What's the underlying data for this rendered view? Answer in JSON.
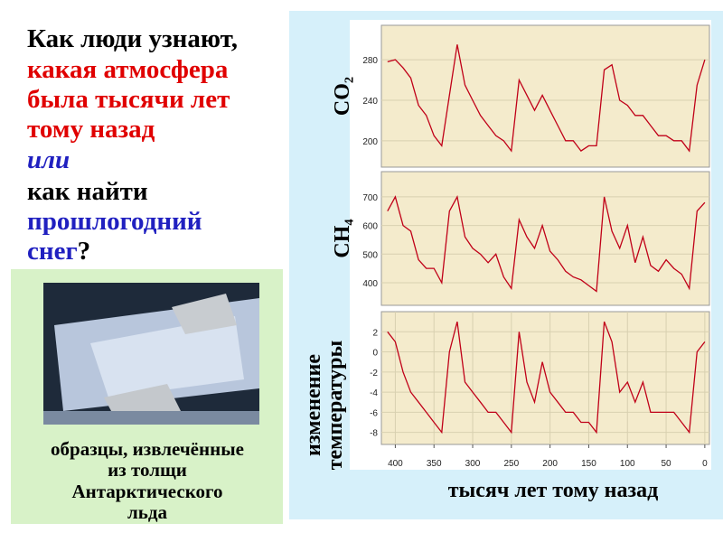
{
  "question": [
    "Как люди узнают,",
    "какая атмосфера",
    "была тысячи лет",
    "тому назад",
    "или",
    "как найти",
    "прошлогодний",
    "снег",
    "?"
  ],
  "caption": [
    "образцы, извлечённые",
    "из толщи",
    "Антарктического",
    "льда"
  ],
  "chart_data": [
    {
      "type": "line",
      "y_label": "CO₂",
      "color": "#c00018",
      "grid": true,
      "x": [
        410,
        400,
        390,
        380,
        370,
        360,
        350,
        340,
        330,
        320,
        310,
        300,
        290,
        280,
        270,
        260,
        250,
        240,
        230,
        220,
        210,
        200,
        190,
        180,
        170,
        160,
        150,
        140,
        130,
        120,
        110,
        100,
        90,
        80,
        70,
        60,
        50,
        40,
        30,
        20,
        10,
        0
      ],
      "values": [
        278,
        280,
        272,
        262,
        235,
        225,
        205,
        195,
        245,
        295,
        255,
        240,
        225,
        215,
        205,
        200,
        190,
        260,
        245,
        230,
        245,
        230,
        215,
        200,
        200,
        190,
        195,
        195,
        270,
        275,
        240,
        235,
        225,
        225,
        215,
        205,
        205,
        200,
        200,
        190,
        255,
        280
      ],
      "xlim": [
        418,
        -6
      ],
      "ylim": [
        174,
        314
      ],
      "yticks": [
        200,
        240,
        280
      ]
    },
    {
      "type": "line",
      "y_label": "CH₄",
      "color": "#c00018",
      "grid": true,
      "x": [
        410,
        400,
        390,
        380,
        370,
        360,
        350,
        340,
        330,
        320,
        310,
        300,
        290,
        280,
        270,
        260,
        250,
        240,
        230,
        220,
        210,
        200,
        190,
        180,
        170,
        160,
        150,
        140,
        130,
        120,
        110,
        100,
        90,
        80,
        70,
        60,
        50,
        40,
        30,
        20,
        10,
        0
      ],
      "values": [
        650,
        700,
        600,
        580,
        480,
        450,
        450,
        400,
        650,
        700,
        560,
        520,
        500,
        470,
        500,
        420,
        380,
        620,
        560,
        520,
        600,
        510,
        480,
        440,
        420,
        410,
        390,
        370,
        700,
        580,
        520,
        600,
        470,
        560,
        460,
        440,
        480,
        450,
        430,
        380,
        650,
        680
      ],
      "xlim": [
        418,
        -6
      ],
      "ylim": [
        321,
        788
      ],
      "yticks": [
        400,
        500,
        600,
        700
      ]
    },
    {
      "type": "line",
      "y_label": [
        "изменение",
        "температуры"
      ],
      "color": "#c00018",
      "grid": true,
      "x": [
        410,
        400,
        390,
        380,
        370,
        360,
        350,
        340,
        330,
        320,
        310,
        300,
        290,
        280,
        270,
        260,
        250,
        240,
        230,
        220,
        210,
        200,
        190,
        180,
        170,
        160,
        150,
        140,
        130,
        120,
        110,
        100,
        90,
        80,
        70,
        60,
        50,
        40,
        30,
        20,
        10,
        0
      ],
      "values": [
        2,
        1,
        -2,
        -4,
        -5,
        -6,
        -7,
        -8,
        0,
        3,
        -3,
        -4,
        -5,
        -6,
        -6,
        -7,
        -8,
        2,
        -3,
        -5,
        -1,
        -4,
        -5,
        -6,
        -6,
        -7,
        -7,
        -8,
        3,
        1,
        -4,
        -3,
        -5,
        -3,
        -6,
        -6,
        -6,
        -6,
        -7,
        -8,
        0,
        1
      ],
      "xlim": [
        418,
        -6
      ],
      "ylim": [
        -9.2,
        4
      ],
      "yticks": [
        2,
        0,
        -2,
        -4,
        -6,
        -8
      ],
      "xticks": [
        400,
        350,
        300,
        250,
        200,
        150,
        100,
        50,
        0
      ],
      "x_label": "тысяч лет тому назад"
    }
  ]
}
